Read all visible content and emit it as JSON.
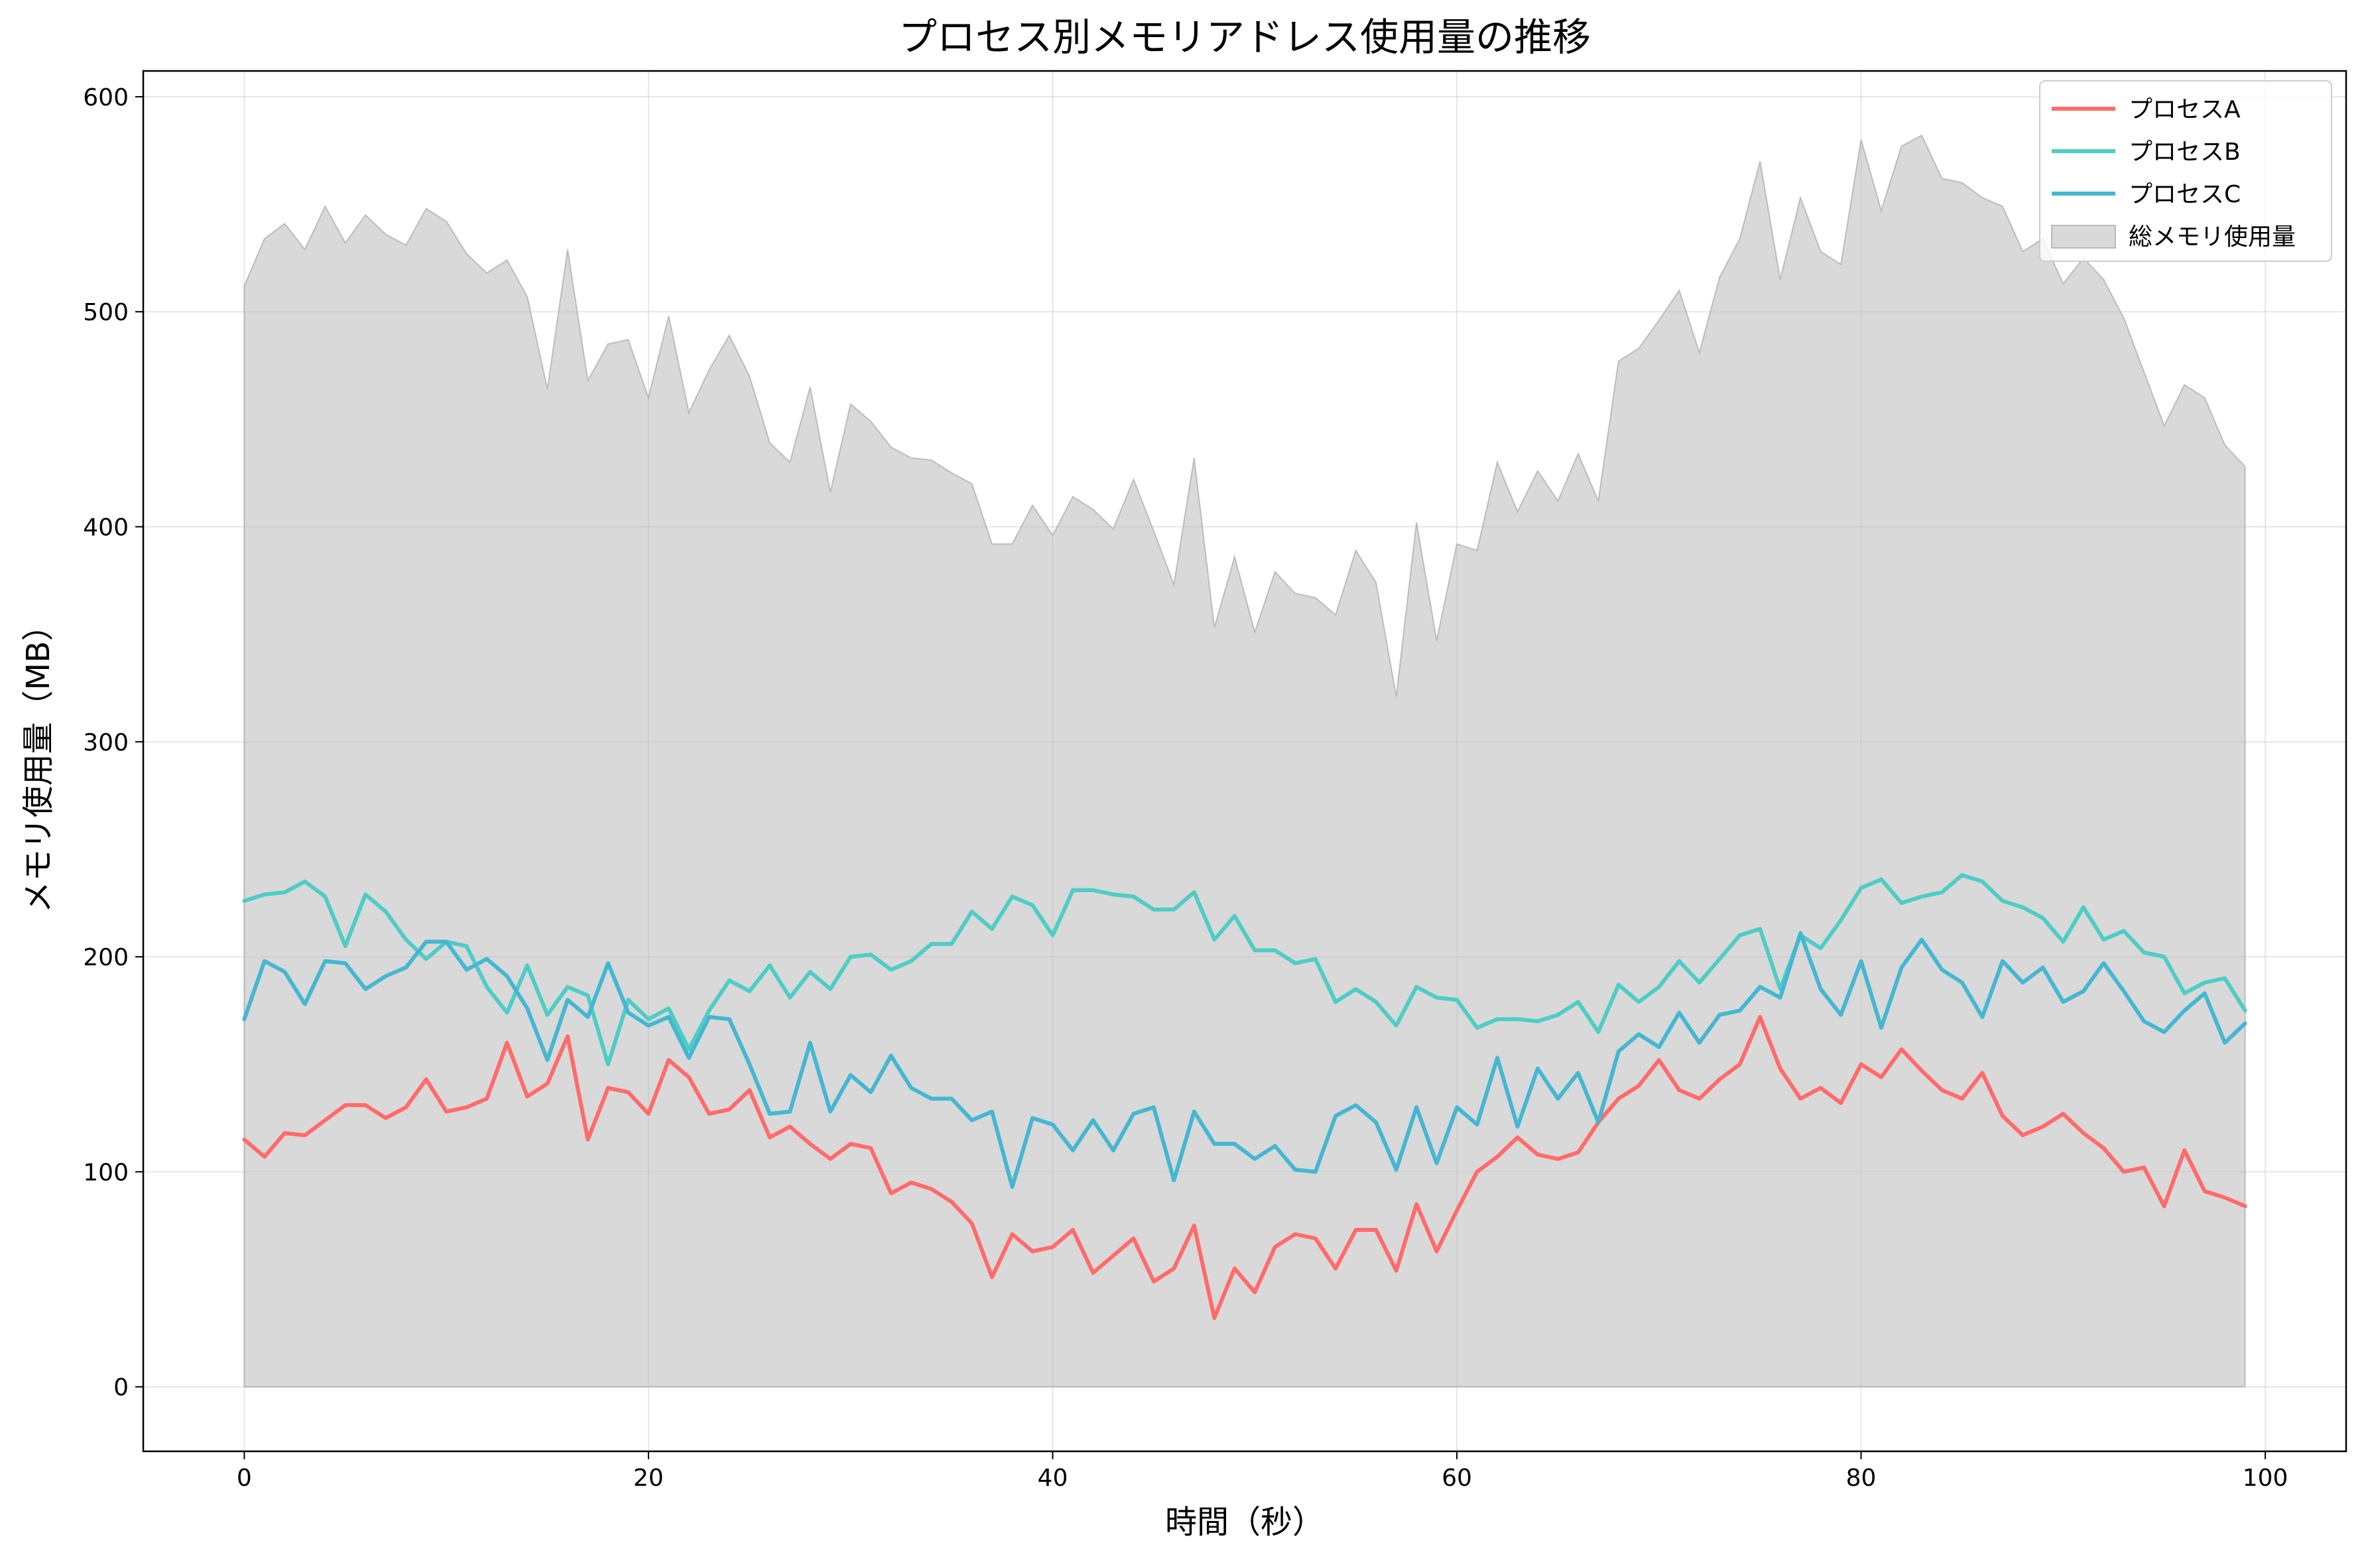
{
  "chart_data": {
    "type": "line",
    "title": "プロセス別メモリアドレス使用量の推移",
    "xlabel": "時間（秒）",
    "ylabel": "メモリ使用量（MB）",
    "xlim": [
      -5,
      104
    ],
    "ylim": [
      -30,
      612
    ],
    "x_ticks": [
      0,
      20,
      40,
      60,
      80,
      100
    ],
    "y_ticks": [
      0,
      100,
      200,
      300,
      400,
      500,
      600
    ],
    "grid": true,
    "legend_position": "top-right",
    "series": [
      {
        "name": "プロセスA",
        "color": "#ff6b6b",
        "values": [
          115,
          107,
          118,
          117,
          124,
          131,
          131,
          125,
          130,
          143,
          128,
          130,
          134,
          160,
          135,
          141,
          163,
          115,
          139,
          137,
          127,
          152,
          144,
          127,
          129,
          138,
          116,
          121,
          113,
          106,
          113,
          111,
          90,
          95,
          92,
          86,
          76,
          51,
          71,
          63,
          65,
          73,
          53,
          61,
          69,
          49,
          55,
          75,
          32,
          55,
          44,
          65,
          71,
          69,
          55,
          73,
          73,
          54,
          85,
          63,
          82,
          100,
          107,
          116,
          108,
          106,
          109,
          123,
          134,
          140,
          152,
          138,
          134,
          143,
          150,
          172,
          148,
          134,
          139,
          132,
          150,
          144,
          157,
          147,
          138,
          134,
          146,
          126,
          117,
          121,
          127,
          118,
          111,
          100,
          102,
          84,
          110,
          91,
          88,
          84
        ]
      },
      {
        "name": "プロセスB",
        "color": "#4ecdc4",
        "values": [
          226,
          229,
          230,
          235,
          228,
          205,
          229,
          221,
          208,
          199,
          207,
          205,
          186,
          174,
          196,
          173,
          186,
          182,
          150,
          180,
          171,
          176,
          157,
          175,
          189,
          184,
          196,
          181,
          193,
          185,
          200,
          201,
          194,
          198,
          206,
          206,
          221,
          213,
          228,
          224,
          210,
          231,
          231,
          229,
          228,
          222,
          222,
          230,
          208,
          219,
          203,
          203,
          197,
          199,
          179,
          185,
          179,
          168,
          186,
          181,
          180,
          167,
          171,
          171,
          170,
          173,
          179,
          165,
          187,
          179,
          186,
          198,
          188,
          199,
          210,
          213,
          185,
          210,
          204,
          217,
          232,
          236,
          225,
          228,
          230,
          238,
          235,
          226,
          223,
          218,
          207,
          223,
          208,
          212,
          202,
          200,
          183,
          188,
          190,
          175
        ]
      },
      {
        "name": "プロセスC",
        "color": "#45b7d1",
        "values": [
          171,
          198,
          193,
          178,
          198,
          197,
          185,
          191,
          195,
          207,
          207,
          194,
          199,
          191,
          176,
          152,
          180,
          172,
          197,
          174,
          168,
          172,
          153,
          172,
          171,
          150,
          127,
          128,
          160,
          128,
          145,
          137,
          154,
          139,
          134,
          134,
          124,
          128,
          93,
          125,
          122,
          110,
          124,
          110,
          127,
          130,
          96,
          128,
          113,
          113,
          106,
          112,
          101,
          100,
          126,
          131,
          123,
          101,
          130,
          104,
          130,
          122,
          153,
          121,
          148,
          134,
          146,
          123,
          156,
          164,
          158,
          174,
          160,
          173,
          175,
          186,
          181,
          211,
          185,
          173,
          198,
          167,
          195,
          208,
          194,
          188,
          172,
          198,
          188,
          195,
          179,
          184,
          197,
          184,
          170,
          165,
          175,
          183,
          160,
          169
        ]
      },
      {
        "name": "総メモリ使用量",
        "color": "#cccccc",
        "type": "area",
        "values": [
          512,
          534,
          541,
          529,
          549,
          532,
          545,
          536,
          531,
          548,
          542,
          527,
          518,
          524,
          507,
          464,
          529,
          468,
          485,
          487,
          460,
          498,
          453,
          473,
          489,
          470,
          439,
          430,
          465,
          416,
          457,
          449,
          437,
          432,
          431,
          425,
          420,
          392,
          392,
          410,
          396,
          414,
          408,
          399,
          422,
          398,
          373,
          432,
          353,
          386,
          351,
          379,
          369,
          367,
          359,
          389,
          374,
          321,
          402,
          347,
          392,
          389,
          430,
          407,
          426,
          412,
          434,
          412,
          477,
          483,
          496,
          510,
          481,
          516,
          534,
          570,
          515,
          553,
          528,
          522,
          580,
          547,
          577,
          582,
          562,
          560,
          553,
          549,
          528,
          534,
          513,
          525,
          515,
          497,
          472,
          447,
          466,
          460,
          438,
          428
        ]
      }
    ]
  }
}
